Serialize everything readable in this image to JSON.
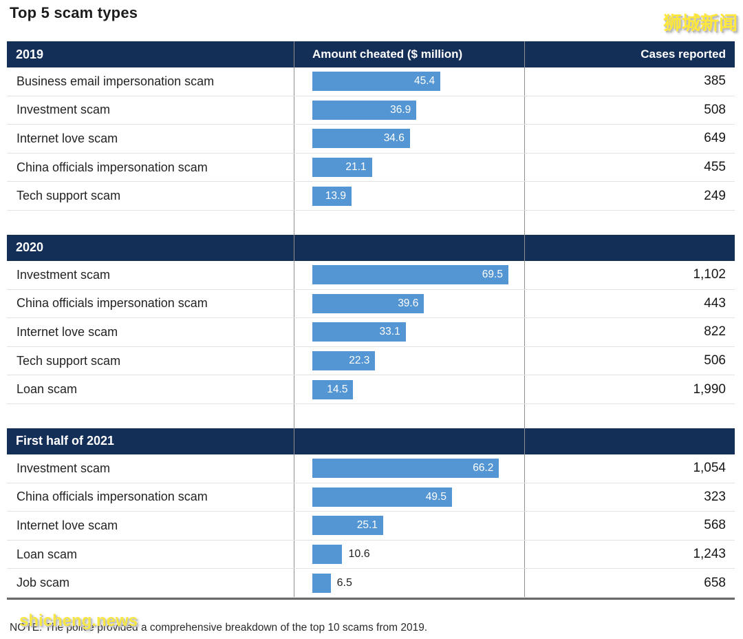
{
  "title": "Top 5 scam types",
  "watermarks": {
    "top_right": "狮城新闻",
    "bottom_left": "shicheng.news"
  },
  "columns": {
    "amount": "Amount cheated ($ million)",
    "cases": "Cases reported"
  },
  "note": "NOTE: The police provided a comprehensive breakdown of the top 10 scams from 2019.",
  "colors": {
    "header_bg": "#142f57",
    "header_text": "#ffffff",
    "bar": "#5495d4",
    "bar_label_inside": "#ffffff",
    "divider": "#8f8f8f",
    "row_line": "#e2e2e2",
    "bottom_border": "#6a6a6a",
    "watermark_yellow": "#ffe83a"
  },
  "chart_data": {
    "type": "bar",
    "title": "Top 5 scam types",
    "value_label": "Amount cheated ($ million)",
    "secondary_label": "Cases reported",
    "axis_max_estimate": 76,
    "orientation": "horizontal",
    "sections": [
      {
        "period": "2019",
        "rows": [
          {
            "name": "Business email impersonation scam",
            "amount": 45.4,
            "cases": 385
          },
          {
            "name": "Investment scam",
            "amount": 36.9,
            "cases": 508
          },
          {
            "name": "Internet love scam",
            "amount": 34.6,
            "cases": 649
          },
          {
            "name": "China officials impersonation scam",
            "amount": 21.1,
            "cases": 455
          },
          {
            "name": "Tech support scam",
            "amount": 13.9,
            "cases": 249
          }
        ]
      },
      {
        "period": "2020",
        "rows": [
          {
            "name": "Investment scam",
            "amount": 69.5,
            "cases": 1102
          },
          {
            "name": "China officials impersonation scam",
            "amount": 39.6,
            "cases": 443
          },
          {
            "name": "Internet love scam",
            "amount": 33.1,
            "cases": 822
          },
          {
            "name": "Tech support scam",
            "amount": 22.3,
            "cases": 506
          },
          {
            "name": "Loan scam",
            "amount": 14.5,
            "cases": 1990
          }
        ]
      },
      {
        "period": "First half of 2021",
        "rows": [
          {
            "name": "Investment scam",
            "amount": 66.2,
            "cases": 1054
          },
          {
            "name": "China officials impersonation scam",
            "amount": 49.5,
            "cases": 323
          },
          {
            "name": "Internet love scam",
            "amount": 25.1,
            "cases": 568
          },
          {
            "name": "Loan scam",
            "amount": 10.6,
            "cases": 1243
          },
          {
            "name": "Job scam",
            "amount": 6.5,
            "cases": 658
          }
        ]
      }
    ]
  }
}
